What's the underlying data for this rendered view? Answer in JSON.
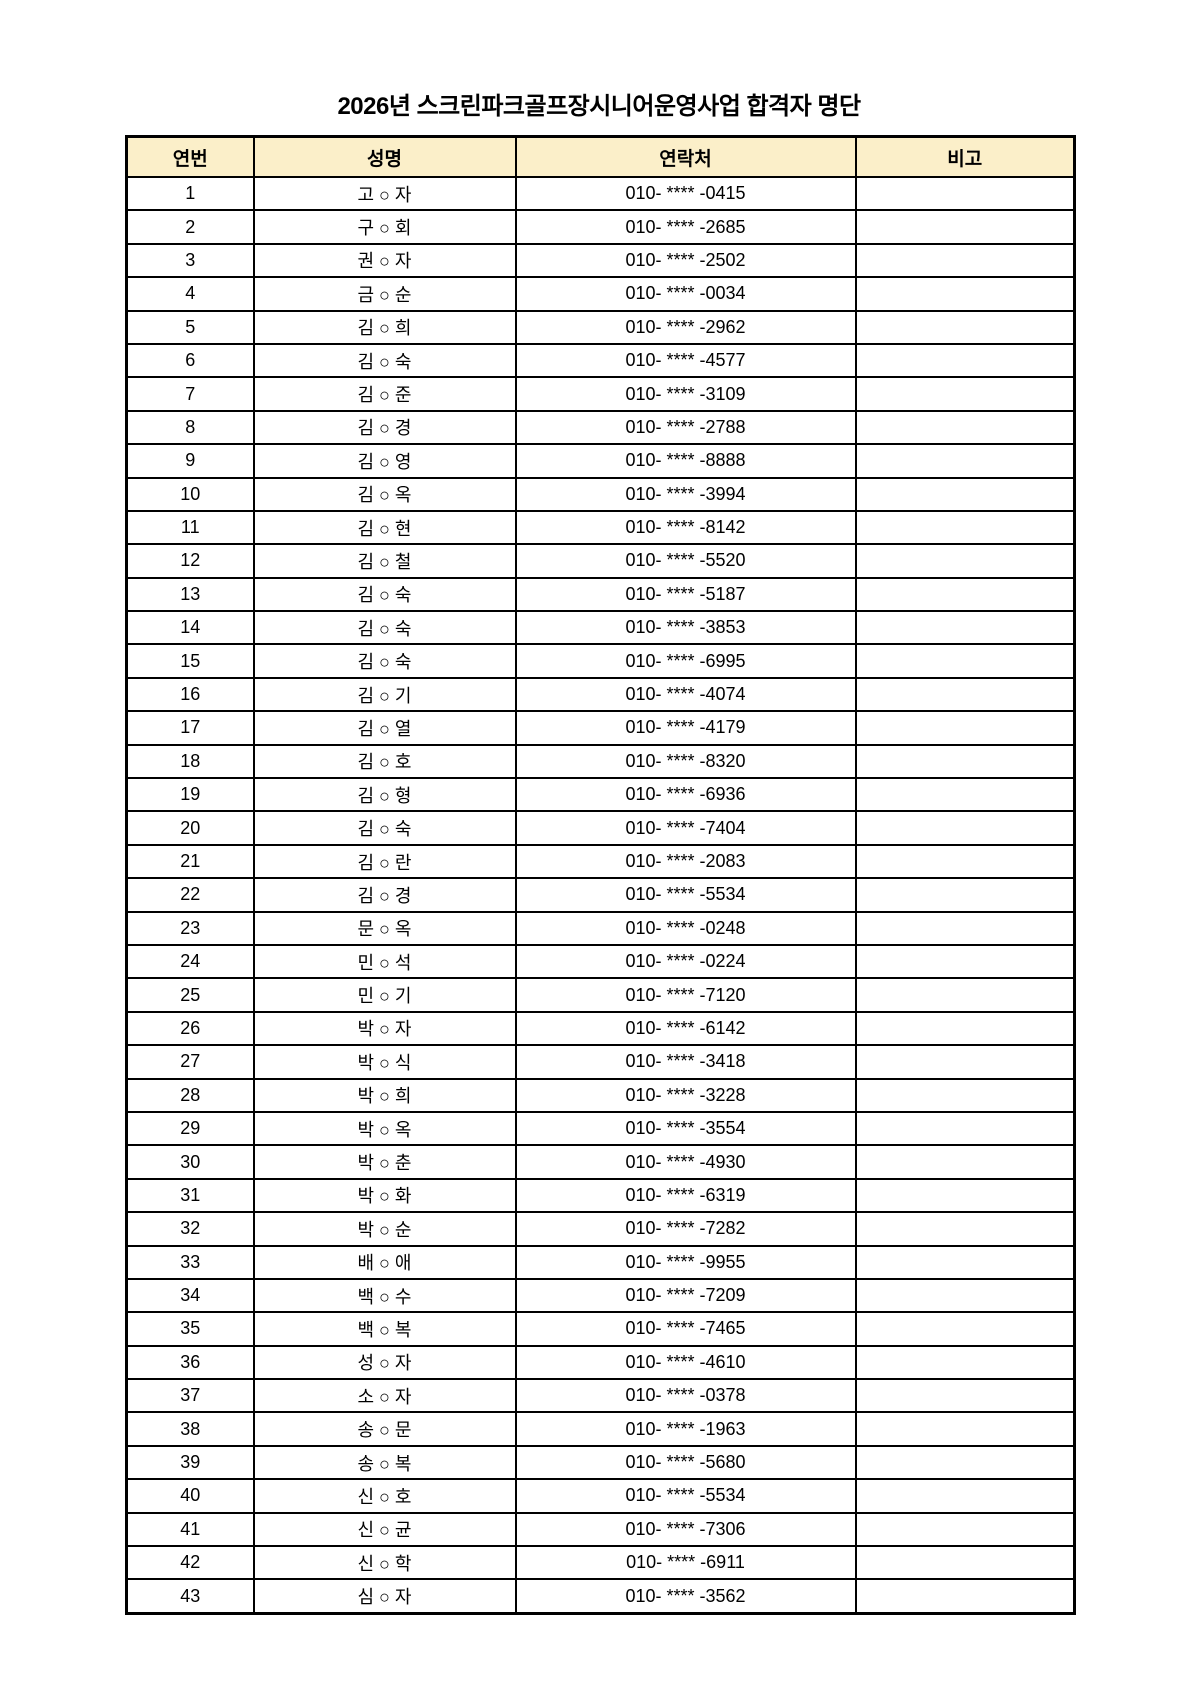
{
  "page": {
    "title": "2026년 스크린파크골프장시니어운영사업 합격자 명단"
  },
  "table": {
    "headers": [
      "연번",
      "성명",
      "연락처",
      "비고"
    ],
    "header_bg": "#FBEFC9",
    "border_color": "#000000",
    "rows": [
      {
        "no": "1",
        "name": "고 ○ 자",
        "contact": "010- **** -0415",
        "note": ""
      },
      {
        "no": "2",
        "name": "구 ○ 회",
        "contact": "010- **** -2685",
        "note": ""
      },
      {
        "no": "3",
        "name": "권 ○ 자",
        "contact": "010- **** -2502",
        "note": ""
      },
      {
        "no": "4",
        "name": "금 ○ 순",
        "contact": "010- **** -0034",
        "note": ""
      },
      {
        "no": "5",
        "name": "김 ○ 희",
        "contact": "010- **** -2962",
        "note": ""
      },
      {
        "no": "6",
        "name": "김 ○ 숙",
        "contact": "010- **** -4577",
        "note": ""
      },
      {
        "no": "7",
        "name": "김 ○ 준",
        "contact": "010- **** -3109",
        "note": ""
      },
      {
        "no": "8",
        "name": "김 ○ 경",
        "contact": "010- **** -2788",
        "note": ""
      },
      {
        "no": "9",
        "name": "김 ○ 영",
        "contact": "010- **** -8888",
        "note": ""
      },
      {
        "no": "10",
        "name": "김 ○ 옥",
        "contact": "010- **** -3994",
        "note": ""
      },
      {
        "no": "11",
        "name": "김 ○ 현",
        "contact": "010- **** -8142",
        "note": ""
      },
      {
        "no": "12",
        "name": "김 ○ 철",
        "contact": "010- **** -5520",
        "note": ""
      },
      {
        "no": "13",
        "name": "김 ○ 숙",
        "contact": "010- **** -5187",
        "note": ""
      },
      {
        "no": "14",
        "name": "김 ○ 숙",
        "contact": "010- **** -3853",
        "note": ""
      },
      {
        "no": "15",
        "name": "김 ○ 숙",
        "contact": "010- **** -6995",
        "note": ""
      },
      {
        "no": "16",
        "name": "김 ○ 기",
        "contact": "010- **** -4074",
        "note": ""
      },
      {
        "no": "17",
        "name": "김 ○ 열",
        "contact": "010- **** -4179",
        "note": ""
      },
      {
        "no": "18",
        "name": "김 ○ 호",
        "contact": "010- **** -8320",
        "note": ""
      },
      {
        "no": "19",
        "name": "김 ○ 형",
        "contact": "010- **** -6936",
        "note": ""
      },
      {
        "no": "20",
        "name": "김 ○ 숙",
        "contact": "010- **** -7404",
        "note": ""
      },
      {
        "no": "21",
        "name": "김 ○ 란",
        "contact": "010- **** -2083",
        "note": ""
      },
      {
        "no": "22",
        "name": "김 ○ 경",
        "contact": "010- **** -5534",
        "note": ""
      },
      {
        "no": "23",
        "name": "문 ○ 옥",
        "contact": "010- **** -0248",
        "note": ""
      },
      {
        "no": "24",
        "name": "민 ○ 석",
        "contact": "010- **** -0224",
        "note": ""
      },
      {
        "no": "25",
        "name": "민 ○ 기",
        "contact": "010- **** -7120",
        "note": ""
      },
      {
        "no": "26",
        "name": "박 ○ 자",
        "contact": "010- **** -6142",
        "note": ""
      },
      {
        "no": "27",
        "name": "박 ○ 식",
        "contact": "010- **** -3418",
        "note": ""
      },
      {
        "no": "28",
        "name": "박 ○ 희",
        "contact": "010- **** -3228",
        "note": ""
      },
      {
        "no": "29",
        "name": "박 ○ 옥",
        "contact": "010- **** -3554",
        "note": ""
      },
      {
        "no": "30",
        "name": "박 ○ 춘",
        "contact": "010- **** -4930",
        "note": ""
      },
      {
        "no": "31",
        "name": "박 ○ 화",
        "contact": "010- **** -6319",
        "note": ""
      },
      {
        "no": "32",
        "name": "박 ○ 순",
        "contact": "010- **** -7282",
        "note": ""
      },
      {
        "no": "33",
        "name": "배 ○ 애",
        "contact": "010- **** -9955",
        "note": ""
      },
      {
        "no": "34",
        "name": "백 ○ 수",
        "contact": "010- **** -7209",
        "note": ""
      },
      {
        "no": "35",
        "name": "백 ○ 복",
        "contact": "010- **** -7465",
        "note": ""
      },
      {
        "no": "36",
        "name": "성 ○ 자",
        "contact": "010- **** -4610",
        "note": ""
      },
      {
        "no": "37",
        "name": "소 ○ 자",
        "contact": "010- **** -0378",
        "note": ""
      },
      {
        "no": "38",
        "name": "송 ○ 문",
        "contact": "010- **** -1963",
        "note": ""
      },
      {
        "no": "39",
        "name": "송 ○ 복",
        "contact": "010- **** -5680",
        "note": ""
      },
      {
        "no": "40",
        "name": "신 ○ 호",
        "contact": "010- **** -5534",
        "note": ""
      },
      {
        "no": "41",
        "name": "신 ○ 균",
        "contact": "010- **** -7306",
        "note": ""
      },
      {
        "no": "42",
        "name": "신 ○ 학",
        "contact": "010- **** -6911",
        "note": ""
      },
      {
        "no": "43",
        "name": "심 ○ 자",
        "contact": "010- **** -3562",
        "note": ""
      }
    ]
  }
}
